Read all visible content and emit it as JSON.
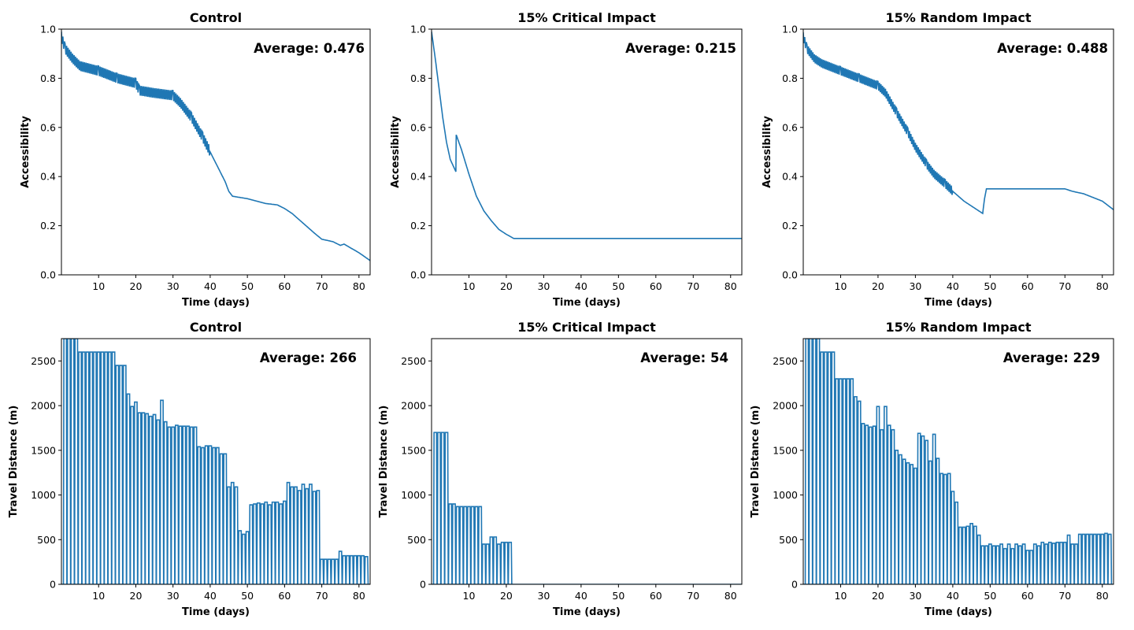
{
  "chart_data": [
    {
      "type": "line",
      "title": "Control",
      "xlabel": "Time (days)",
      "ylabel": "Accessibility",
      "annotation": "Average: 0.476",
      "xlim": [
        0,
        83
      ],
      "ylim": [
        0,
        1.0
      ],
      "xticks": [
        10,
        20,
        30,
        40,
        50,
        60,
        70,
        80
      ],
      "yticks": [
        0.0,
        0.2,
        0.4,
        0.6,
        0.8,
        1.0
      ],
      "ytick_labels": [
        "0.0",
        "0.2",
        "0.4",
        "0.6",
        "0.8",
        "1.0"
      ],
      "color": "#1f77b4",
      "series": [
        {
          "x": [
            0,
            1,
            3,
            5,
            10,
            15,
            20,
            21,
            25,
            30,
            32,
            35,
            38,
            40,
            42,
            44,
            45,
            46,
            50,
            55,
            58,
            60,
            62,
            65,
            68,
            70,
            73,
            75,
            76,
            80,
            83
          ],
          "y": [
            0.97,
            0.92,
            0.88,
            0.85,
            0.83,
            0.8,
            0.78,
            0.75,
            0.74,
            0.73,
            0.7,
            0.64,
            0.56,
            0.5,
            0.44,
            0.38,
            0.34,
            0.32,
            0.31,
            0.29,
            0.285,
            0.27,
            0.25,
            0.21,
            0.17,
            0.145,
            0.135,
            0.12,
            0.125,
            0.09,
            0.058
          ],
          "oscillation": 0.04
        }
      ]
    },
    {
      "type": "line",
      "title": "15% Critical Impact",
      "xlabel": "Time (days)",
      "ylabel": "Accessibility",
      "annotation": "Average: 0.215",
      "xlim": [
        0,
        83
      ],
      "ylim": [
        0,
        1.0
      ],
      "xticks": [
        10,
        20,
        30,
        40,
        50,
        60,
        70,
        80
      ],
      "yticks": [
        0.0,
        0.2,
        0.4,
        0.6,
        0.8,
        1.0
      ],
      "ytick_labels": [
        "0.0",
        "0.2",
        "0.4",
        "0.6",
        "0.8",
        "1.0"
      ],
      "color": "#1f77b4",
      "series": [
        {
          "x": [
            0,
            1,
            2,
            3,
            4,
            5,
            6.5,
            6.6,
            8,
            10,
            12,
            14,
            16,
            18,
            20,
            22,
            83
          ],
          "y": [
            0.99,
            0.88,
            0.76,
            0.64,
            0.54,
            0.47,
            0.42,
            0.57,
            0.51,
            0.41,
            0.32,
            0.26,
            0.22,
            0.185,
            0.165,
            0.148,
            0.148
          ],
          "oscillation": 0.0
        }
      ]
    },
    {
      "type": "line",
      "title": "15% Random Impact",
      "xlabel": "Time (days)",
      "ylabel": "Accessibility",
      "annotation": "Average: 0.488",
      "xlim": [
        0,
        83
      ],
      "ylim": [
        0,
        1.0
      ],
      "xticks": [
        10,
        20,
        30,
        40,
        50,
        60,
        70,
        80
      ],
      "yticks": [
        0.0,
        0.2,
        0.4,
        0.6,
        0.8,
        1.0
      ],
      "ytick_labels": [
        "0.0",
        "0.2",
        "0.4",
        "0.6",
        "0.8",
        "1.0"
      ],
      "color": "#1f77b4",
      "series": [
        {
          "x": [
            0,
            1,
            3,
            5,
            10,
            15,
            20,
            22,
            25,
            28,
            30,
            33,
            35,
            38,
            40,
            43,
            45,
            47,
            48,
            48.5,
            49,
            50,
            55,
            60,
            65,
            70,
            72,
            75,
            80,
            83
          ],
          "y": [
            0.97,
            0.92,
            0.88,
            0.86,
            0.83,
            0.8,
            0.77,
            0.74,
            0.66,
            0.58,
            0.52,
            0.45,
            0.41,
            0.37,
            0.34,
            0.3,
            0.28,
            0.26,
            0.25,
            0.31,
            0.35,
            0.35,
            0.35,
            0.35,
            0.35,
            0.35,
            0.34,
            0.33,
            0.3,
            0.265
          ],
          "oscillation": 0.035
        }
      ]
    },
    {
      "type": "bar",
      "title": "Control",
      "xlabel": "Time (days)",
      "ylabel": "Travel Distance (m)",
      "annotation": "Average: 266",
      "xlim": [
        0,
        83
      ],
      "ylim": [
        0,
        2750
      ],
      "xticks": [
        10,
        20,
        30,
        40,
        50,
        60,
        70,
        80
      ],
      "yticks": [
        0,
        500,
        1000,
        1500,
        2000,
        2500
      ],
      "ytick_labels": [
        "0",
        "500",
        "1000",
        "1500",
        "2000",
        "2500"
      ],
      "color": "#1f77b4",
      "series": [
        {
          "x": [
            1,
            2,
            3,
            4,
            5,
            6,
            7,
            8,
            9,
            10,
            11,
            12,
            13,
            14,
            15,
            16,
            17,
            18,
            19,
            20,
            21,
            22,
            23,
            24,
            25,
            26,
            27,
            28,
            29,
            30,
            31,
            32,
            33,
            34,
            35,
            36,
            37,
            38,
            39,
            40,
            41,
            42,
            43,
            44,
            45,
            46,
            47,
            48,
            49,
            50,
            51,
            52,
            53,
            54,
            55,
            56,
            57,
            58,
            59,
            60,
            61,
            62,
            63,
            64,
            65,
            66,
            67,
            68,
            69,
            70,
            71,
            72,
            73,
            74,
            75,
            76,
            77,
            78,
            79,
            80,
            81,
            82
          ],
          "y": [
            2750,
            2750,
            2750,
            2750,
            2600,
            2600,
            2600,
            2600,
            2600,
            2600,
            2600,
            2600,
            2600,
            2600,
            2450,
            2450,
            2450,
            2130,
            1990,
            2040,
            1920,
            1920,
            1910,
            1880,
            1900,
            1840,
            2060,
            1820,
            1760,
            1760,
            1780,
            1770,
            1770,
            1770,
            1760,
            1760,
            1540,
            1530,
            1550,
            1550,
            1530,
            1530,
            1460,
            1460,
            1090,
            1140,
            1090,
            600,
            560,
            590,
            890,
            900,
            910,
            900,
            920,
            890,
            920,
            920,
            900,
            930,
            1140,
            1090,
            1090,
            1050,
            1120,
            1070,
            1120,
            1040,
            1050,
            280,
            280,
            280,
            280,
            280,
            370,
            320,
            320,
            320,
            320,
            320,
            320,
            310
          ],
          "trough": 0
        }
      ]
    },
    {
      "type": "bar",
      "title": "15% Critical Impact",
      "xlabel": "Time (days)",
      "ylabel": "Travel Distance (m)",
      "annotation": "Average: 54",
      "xlim": [
        0,
        83
      ],
      "ylim": [
        0,
        2750
      ],
      "xticks": [
        10,
        20,
        30,
        40,
        50,
        60,
        70,
        80
      ],
      "yticks": [
        0,
        500,
        1000,
        1500,
        2000,
        2500
      ],
      "ytick_labels": [
        "0",
        "500",
        "1000",
        "1500",
        "2000",
        "2500"
      ],
      "color": "#1f77b4",
      "series": [
        {
          "x": [
            1,
            2,
            3,
            4,
            5,
            6,
            7,
            8,
            9,
            10,
            11,
            12,
            13,
            14,
            15,
            16,
            17,
            18,
            19,
            20,
            21,
            22
          ],
          "y": [
            1700,
            1700,
            1700,
            1700,
            900,
            900,
            870,
            870,
            870,
            870,
            870,
            870,
            870,
            450,
            450,
            530,
            530,
            450,
            470,
            470,
            470,
            0
          ],
          "trough": 0
        }
      ]
    },
    {
      "type": "bar",
      "title": "15% Random Impact",
      "xlabel": "Time (days)",
      "ylabel": "Travel Distance (m)",
      "annotation": "Average: 229",
      "xlim": [
        0,
        83
      ],
      "ylim": [
        0,
        2750
      ],
      "xticks": [
        10,
        20,
        30,
        40,
        50,
        60,
        70,
        80
      ],
      "yticks": [
        0,
        500,
        1000,
        1500,
        2000,
        2500
      ],
      "ytick_labels": [
        "0",
        "500",
        "1000",
        "1500",
        "2000",
        "2500"
      ],
      "color": "#1f77b4",
      "series": [
        {
          "x": [
            1,
            2,
            3,
            4,
            5,
            6,
            7,
            8,
            9,
            10,
            11,
            12,
            13,
            14,
            15,
            16,
            17,
            18,
            19,
            20,
            21,
            22,
            23,
            24,
            25,
            26,
            27,
            28,
            29,
            30,
            31,
            32,
            33,
            34,
            35,
            36,
            37,
            38,
            39,
            40,
            41,
            42,
            43,
            44,
            45,
            46,
            47,
            48,
            49,
            50,
            51,
            52,
            53,
            54,
            55,
            56,
            57,
            58,
            59,
            60,
            61,
            62,
            63,
            64,
            65,
            66,
            67,
            68,
            69,
            70,
            71,
            72,
            73,
            74,
            75,
            76,
            77,
            78,
            79,
            80,
            81,
            82
          ],
          "y": [
            2750,
            2750,
            2750,
            2750,
            2600,
            2600,
            2600,
            2600,
            2300,
            2300,
            2300,
            2300,
            2300,
            2100,
            2050,
            1800,
            1780,
            1760,
            1770,
            1990,
            1730,
            1990,
            1780,
            1730,
            1500,
            1450,
            1400,
            1360,
            1340,
            1300,
            1690,
            1660,
            1610,
            1380,
            1680,
            1410,
            1240,
            1230,
            1240,
            1040,
            920,
            640,
            640,
            650,
            680,
            650,
            550,
            430,
            430,
            450,
            430,
            430,
            450,
            400,
            450,
            400,
            450,
            430,
            450,
            380,
            380,
            450,
            430,
            470,
            450,
            470,
            460,
            470,
            470,
            470,
            550,
            450,
            450,
            560,
            560,
            560,
            560,
            560,
            560,
            560,
            570,
            560
          ],
          "trough": 0
        }
      ]
    }
  ]
}
